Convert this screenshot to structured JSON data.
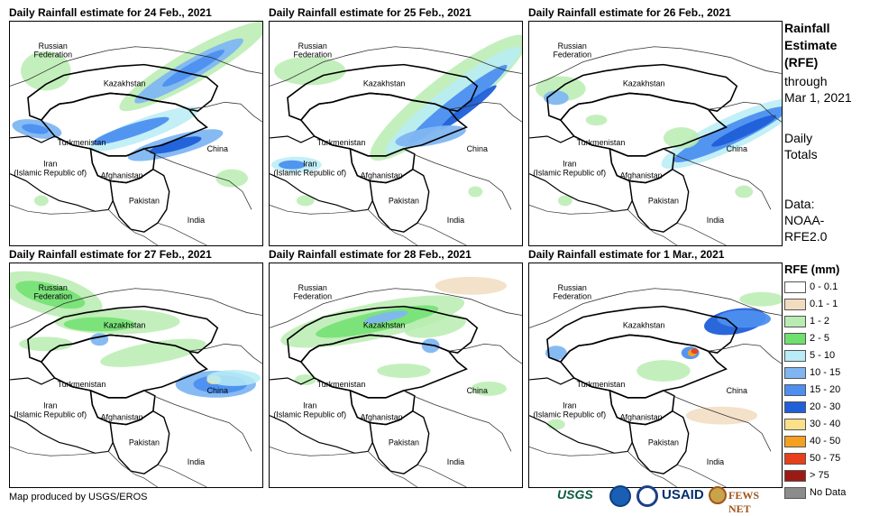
{
  "panels": [
    {
      "title": "Daily Rainfall estimate for 24 Feb., 2021"
    },
    {
      "title": "Daily Rainfall estimate for 25 Feb., 2021"
    },
    {
      "title": "Daily Rainfall estimate for 26 Feb., 2021"
    },
    {
      "title": "Daily Rainfall estimate for 27 Feb., 2021"
    },
    {
      "title": "Daily Rainfall estimate for 28 Feb., 2021"
    },
    {
      "title": "Daily Rainfall estimate for 1 Mar., 2021"
    }
  ],
  "map_labels": {
    "russia": "Russian\nFederation",
    "russia_line1": "Russian",
    "russia_line2": "Federation",
    "kazakhstan": "Kazakhstan",
    "turkmenistan": "Turkmenistan",
    "iran_line1": "Iran",
    "iran_line2": "(Islamic Republic of)",
    "afghanistan": "Afghanistan",
    "pakistan": "Pakistan",
    "china": "China",
    "india": "India"
  },
  "sidebar": {
    "title_line1": "Rainfall",
    "title_line2": "Estimate",
    "title_line3": "(RFE)",
    "through": "through",
    "date": "Mar 1, 2021",
    "daily": "Daily",
    "totals": "Totals",
    "data_label": "Data:",
    "data_src1": "NOAA-",
    "data_src2": "RFE2.0"
  },
  "legend": {
    "title": "RFE (mm)",
    "items": [
      {
        "label": "0 - 0.1",
        "color": "#ffffff"
      },
      {
        "label": "0.1 - 1",
        "color": "#f2dcc0"
      },
      {
        "label": "1 - 2",
        "color": "#b9ecb0"
      },
      {
        "label": "2 - 5",
        "color": "#6ee06e"
      },
      {
        "label": "5 - 10",
        "color": "#b8ecf6"
      },
      {
        "label": "10 - 15",
        "color": "#7fb6f2"
      },
      {
        "label": "15 - 20",
        "color": "#4c8ff0"
      },
      {
        "label": "20 - 30",
        "color": "#1f5fd8"
      },
      {
        "label": "30 - 40",
        "color": "#fbe08a"
      },
      {
        "label": "40 - 50",
        "color": "#f5a020"
      },
      {
        "label": "50 - 75",
        "color": "#e8401a"
      },
      {
        "label": "> 75",
        "color": "#9c1a14"
      },
      {
        "label": "No Data",
        "color": "#8c8c8c"
      }
    ]
  },
  "footer": {
    "credit": "Map produced by USGS/EROS",
    "logo_usgs": "USGS",
    "logo_usaid": "USAID",
    "logo_fews": "FEWS NET"
  }
}
